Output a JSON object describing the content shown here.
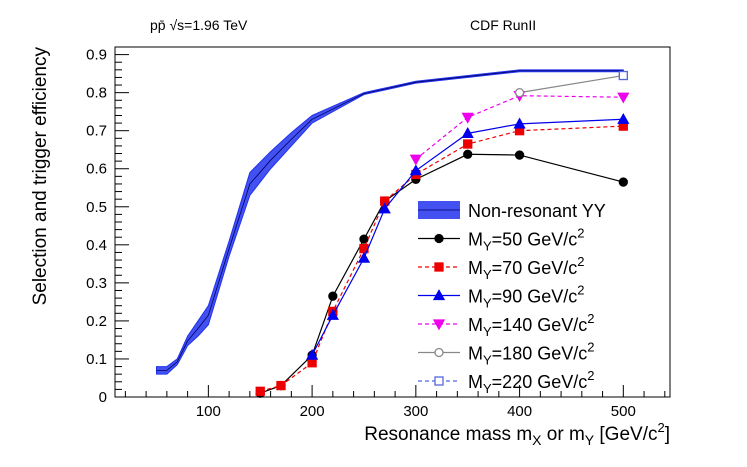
{
  "chart_data": {
    "type": "line",
    "title_left": "pp̄ √s=1.96 TeV",
    "title_right": "CDF RunII",
    "xlabel": "Resonance mass m",
    "xlabel_sub1": "X",
    "xlabel_mid": " or m",
    "xlabel_sub2": "Y",
    "xlabel_end": " [GeV/c",
    "xlabel_sup": "2",
    "xlabel_close": "]",
    "ylabel": "Selection and trigger efficiency",
    "xlim": [
      10,
      545
    ],
    "ylim": [
      0,
      0.92
    ],
    "xticks": [
      100,
      200,
      300,
      400,
      500
    ],
    "yticks": [
      0,
      0.1,
      0.2,
      0.3,
      0.4,
      0.5,
      0.6,
      0.7,
      0.8,
      0.9
    ],
    "band": {
      "name": "Non-resonant YY",
      "color": "#2233ee",
      "x": [
        50,
        60,
        70,
        80,
        90,
        100,
        120,
        140,
        160,
        180,
        200,
        250,
        300,
        400,
        500
      ],
      "low": [
        0.06,
        0.06,
        0.085,
        0.135,
        0.16,
        0.19,
        0.37,
        0.53,
        0.6,
        0.66,
        0.72,
        0.795,
        0.825,
        0.855,
        0.855
      ],
      "high": [
        0.08,
        0.08,
        0.1,
        0.16,
        0.2,
        0.24,
        0.41,
        0.59,
        0.645,
        0.695,
        0.74,
        0.8,
        0.83,
        0.86,
        0.86
      ]
    },
    "series": [
      {
        "name": "M",
        "sub": "Y",
        "label_rest": "=50 GeV/c",
        "sup": "2",
        "color": "#000000",
        "marker": "circle",
        "fill": true,
        "dash": false,
        "x": [
          150,
          170,
          200,
          220,
          250,
          270,
          300,
          350,
          400,
          500
        ],
        "values": [
          0.01,
          0.03,
          0.11,
          0.265,
          0.415,
          0.515,
          0.572,
          0.638,
          0.636,
          0.565
        ]
      },
      {
        "name": "M",
        "sub": "Y",
        "label_rest": "=70 GeV/c",
        "sup": "2",
        "color": "#ee0000",
        "marker": "square",
        "fill": true,
        "dash": true,
        "x": [
          150,
          170,
          200,
          220,
          250,
          270,
          300,
          350,
          400,
          500
        ],
        "values": [
          0.015,
          0.03,
          0.09,
          0.225,
          0.39,
          0.515,
          0.585,
          0.665,
          0.7,
          0.712
        ]
      },
      {
        "name": "M",
        "sub": "Y",
        "label_rest": "=90 GeV/c",
        "sup": "2",
        "color": "#0000ee",
        "marker": "triangle-up",
        "fill": true,
        "dash": false,
        "x": [
          200,
          220,
          250,
          270,
          300,
          350,
          400,
          500
        ],
        "values": [
          0.11,
          0.215,
          0.365,
          0.495,
          0.595,
          0.693,
          0.718,
          0.73
        ]
      },
      {
        "name": "M",
        "sub": "Y",
        "label_rest": "=140 GeV/c",
        "sup": "2",
        "color": "#ee00ee",
        "marker": "triangle-down",
        "fill": true,
        "dash": true,
        "x": [
          300,
          350,
          400,
          500
        ],
        "values": [
          0.625,
          0.735,
          0.792,
          0.788
        ]
      },
      {
        "name": "M",
        "sub": "Y",
        "label_rest": "=180 GeV/c",
        "sup": "2",
        "color": "#888888",
        "marker": "circle",
        "fill": false,
        "dash": false,
        "x": [
          400,
          500
        ],
        "values": [
          0.8,
          0.845
        ]
      },
      {
        "name": "M",
        "sub": "Y",
        "label_rest": "=220 GeV/c",
        "sup": "2",
        "color": "#5566dd",
        "marker": "square",
        "fill": false,
        "dash": true,
        "x": [
          500
        ],
        "values": [
          0.845
        ]
      }
    ],
    "legend": "center-right"
  }
}
